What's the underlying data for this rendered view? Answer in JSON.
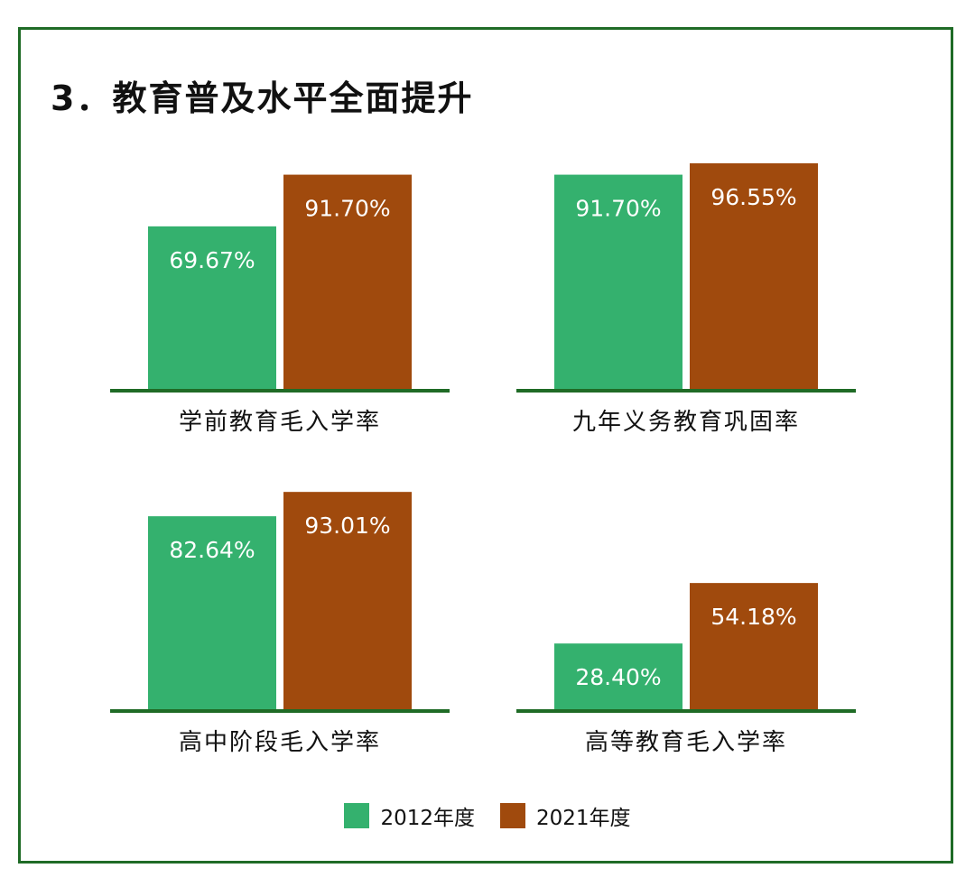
{
  "title": "3．教育普及水平全面提升",
  "colors": {
    "series_2012": "#34b16e",
    "series_2021": "#a04a0d",
    "baseline": "#1f6b26",
    "frame": "#1f6b26"
  },
  "legend": {
    "items": [
      {
        "label": "2012年度",
        "color": "#34b16e"
      },
      {
        "label": "2021年度",
        "color": "#a04a0d"
      }
    ]
  },
  "chart_data": [
    {
      "type": "bar",
      "title": "学前教育毛入学率",
      "categories": [
        "学前教育毛入学率"
      ],
      "series": [
        {
          "name": "2012年度",
          "values": [
            69.67
          ],
          "labels": [
            "69.67%"
          ]
        },
        {
          "name": "2021年度",
          "values": [
            91.7
          ],
          "labels": [
            "91.70%"
          ]
        }
      ],
      "ylim": [
        0,
        100
      ]
    },
    {
      "type": "bar",
      "title": "九年义务教育巩固率",
      "categories": [
        "九年义务教育巩固率"
      ],
      "series": [
        {
          "name": "2012年度",
          "values": [
            91.7
          ],
          "labels": [
            "91.70%"
          ]
        },
        {
          "name": "2021年度",
          "values": [
            96.55
          ],
          "labels": [
            "96.55%"
          ]
        }
      ],
      "ylim": [
        0,
        100
      ]
    },
    {
      "type": "bar",
      "title": "高中阶段毛入学率",
      "categories": [
        "高中阶段毛入学率"
      ],
      "series": [
        {
          "name": "2012年度",
          "values": [
            82.64
          ],
          "labels": [
            "82.64%"
          ]
        },
        {
          "name": "2021年度",
          "values": [
            93.01
          ],
          "labels": [
            "93.01%"
          ]
        }
      ],
      "ylim": [
        0,
        100
      ]
    },
    {
      "type": "bar",
      "title": "高等教育毛入学率",
      "categories": [
        "高等教育毛入学率"
      ],
      "series": [
        {
          "name": "2012年度",
          "values": [
            28.4
          ],
          "labels": [
            "28.40%"
          ]
        },
        {
          "name": "2021年度",
          "values": [
            54.18
          ],
          "labels": [
            "54.18%"
          ]
        }
      ],
      "ylim": [
        0,
        100
      ]
    }
  ]
}
